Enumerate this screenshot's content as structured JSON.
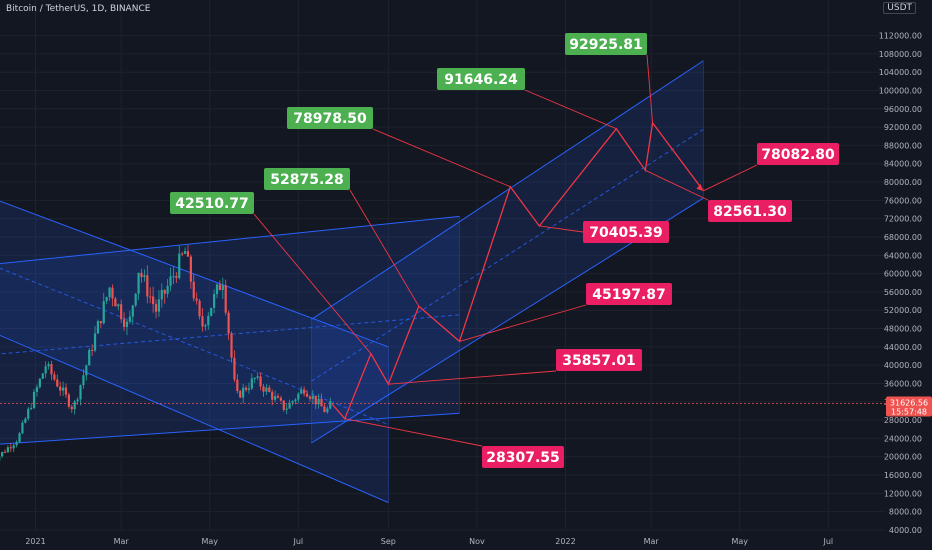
{
  "header": {
    "title": "Bitcoin / TetherUS, 1D, BINANCE",
    "currency": "USDT"
  },
  "last_price": {
    "value": "31626.56",
    "countdown": "15:57:48"
  },
  "colors": {
    "bg": "#131722",
    "grid": "#1e222d",
    "axis_text": "#b2b5be",
    "up": "#26a69a",
    "down": "#ef5350",
    "channel_line": "#2962ff",
    "path": "#f23645",
    "label_green": "#4caf50",
    "label_red": "#e91e63"
  },
  "chart_data": {
    "type": "candlestick",
    "title": "Bitcoin / TetherUS, 1D, BINANCE",
    "x_ticks": [
      "2021",
      "Mar",
      "May",
      "Jul",
      "Sep",
      "Nov",
      "2022",
      "Mar",
      "May",
      "Jul"
    ],
    "y_ticks": [
      "112000.00",
      "108000.00",
      "104000.00",
      "100000.00",
      "96000.00",
      "92000.00",
      "88000.00",
      "84000.00",
      "80000.00",
      "76000.00",
      "72000.00",
      "68000.00",
      "64000.00",
      "60000.00",
      "56000.00",
      "52000.00",
      "48000.00",
      "44000.00",
      "40000.00",
      "36000.00",
      "32000.00",
      "28000.00",
      "24000.00",
      "20000.00",
      "16000.00",
      "12000.00",
      "8000.00",
      "4000.00"
    ],
    "ylim": [
      4000,
      116000
    ],
    "price_history": [
      {
        "date": "2020-12-01",
        "price": 18500
      },
      {
        "date": "2020-12-20",
        "price": 24000
      },
      {
        "date": "2021-01-08",
        "price": 40000
      },
      {
        "date": "2021-01-27",
        "price": 30500
      },
      {
        "date": "2021-02-21",
        "price": 57000
      },
      {
        "date": "2021-03-06",
        "price": 48000
      },
      {
        "date": "2021-03-13",
        "price": 61000
      },
      {
        "date": "2021-03-25",
        "price": 52000
      },
      {
        "date": "2021-04-14",
        "price": 64800
      },
      {
        "date": "2021-04-25",
        "price": 48000
      },
      {
        "date": "2021-05-10",
        "price": 59000
      },
      {
        "date": "2021-05-19",
        "price": 33000
      },
      {
        "date": "2021-06-01",
        "price": 37000
      },
      {
        "date": "2021-06-22",
        "price": 30500
      },
      {
        "date": "2021-07-05",
        "price": 35000
      },
      {
        "date": "2021-07-20",
        "price": 29800
      },
      {
        "date": "2021-07-24",
        "price": 31600
      }
    ],
    "projected_path": [
      {
        "date": "2021-07-24",
        "price": 31600,
        "label": null
      },
      {
        "date": "2021-08-02",
        "price": 28307.55,
        "label": "28307.55"
      },
      {
        "date": "2021-08-20",
        "price": 42510.77,
        "label": "42510.77"
      },
      {
        "date": "2021-09-01",
        "price": 35857.01,
        "label": "35857.01"
      },
      {
        "date": "2021-09-22",
        "price": 52875.28,
        "label": "52875.28"
      },
      {
        "date": "2021-10-20",
        "price": 45197.87,
        "label": "45197.87"
      },
      {
        "date": "2021-11-24",
        "price": 78978.5,
        "label": "78978.50"
      },
      {
        "date": "2021-12-14",
        "price": 70405.39,
        "label": "70405.39"
      },
      {
        "date": "2022-02-05",
        "price": 91646.24,
        "label": "91646.24"
      },
      {
        "date": "2022-02-25",
        "price": 82561.3,
        "label": "82561.30"
      },
      {
        "date": "2022-03-02",
        "price": 92925.81,
        "label": "92925.81"
      },
      {
        "date": "2022-04-06",
        "price": 78082.8,
        "label": "78082.80"
      }
    ],
    "channels": [
      {
        "name": "descending",
        "start": "2020-10-10",
        "end": "2021-09-01",
        "top_start": 82800,
        "top_end": 44000,
        "bottom_start": 54500,
        "bottom_end": 10000
      },
      {
        "name": "rising-wide",
        "start": "2020-08-01",
        "end": "2021-10-20",
        "top_start": 58000,
        "top_end": 72500,
        "bottom_start": 20000,
        "bottom_end": 29500
      },
      {
        "name": "ascending",
        "start": "2021-07-10",
        "end": "2022-04-06",
        "top_start": 50000,
        "top_end": 106500,
        "bottom_start": 23000,
        "bottom_end": 76500
      }
    ],
    "labels": [
      {
        "text": "92925.81",
        "color": "green",
        "anchor": "2022-03-02"
      },
      {
        "text": "91646.24",
        "color": "green",
        "anchor": "2022-02-05"
      },
      {
        "text": "78978.50",
        "color": "green",
        "anchor": "2021-11-24"
      },
      {
        "text": "52875.28",
        "color": "green",
        "anchor": "2021-09-22"
      },
      {
        "text": "42510.77",
        "color": "green",
        "anchor": "2021-08-20"
      },
      {
        "text": "78082.80",
        "color": "red",
        "anchor": "2022-04-06"
      },
      {
        "text": "82561.30",
        "color": "red",
        "anchor": "2022-02-25"
      },
      {
        "text": "70405.39",
        "color": "red",
        "anchor": "2021-12-14"
      },
      {
        "text": "45197.87",
        "color": "red",
        "anchor": "2021-10-20"
      },
      {
        "text": "35857.01",
        "color": "red",
        "anchor": "2021-09-01"
      },
      {
        "text": "28307.55",
        "color": "red",
        "anchor": "2021-08-02"
      }
    ]
  }
}
